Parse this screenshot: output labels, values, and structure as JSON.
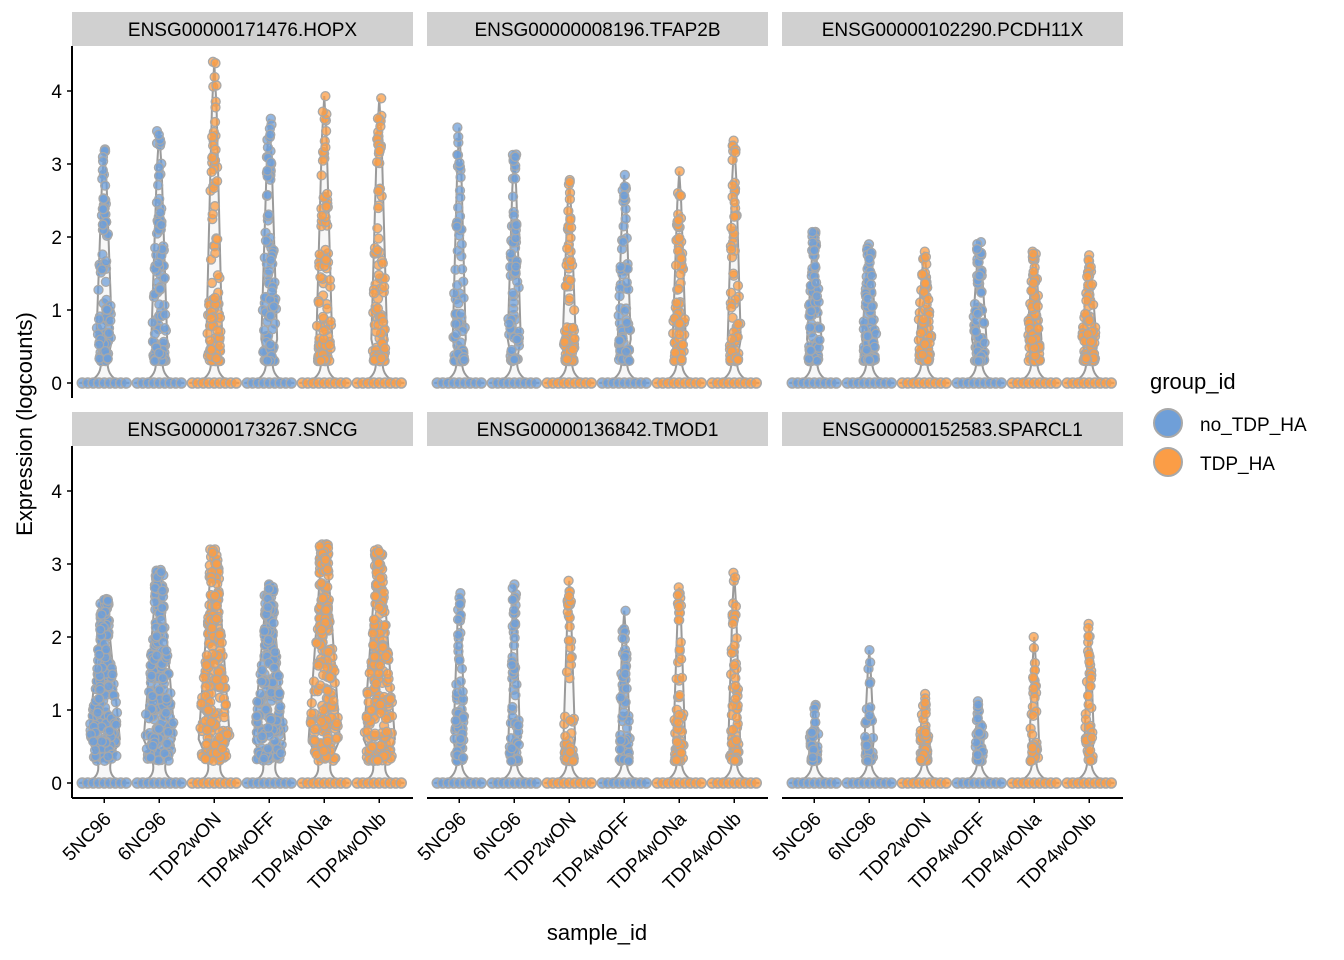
{
  "chart_data": {
    "type": "violin",
    "xlabel": "sample_id",
    "ylabel": "Expression (logcounts)",
    "ylim": [
      0,
      4.5
    ],
    "yticks": [
      0,
      1,
      2,
      3,
      4
    ],
    "grid": false,
    "categories": [
      "5NC96",
      "6NC96",
      "TDP2wON",
      "TDP4wOFF",
      "TDP4wONa",
      "TDP4wONb"
    ],
    "category_group": [
      "no_TDP_HA",
      "no_TDP_HA",
      "TDP_HA",
      "no_TDP_HA",
      "TDP_HA",
      "TDP_HA"
    ],
    "legend": {
      "title": "group_id",
      "position": "right",
      "entries": [
        {
          "name": "no_TDP_HA",
          "color": "#6f9fd8"
        },
        {
          "name": "TDP_HA",
          "color": "#fb9d46"
        }
      ]
    },
    "facets": [
      {
        "title": "ENSG00000171476.HOPX",
        "max_values": [
          3.2,
          3.45,
          4.4,
          3.62,
          3.93,
          3.9
        ]
      },
      {
        "title": "ENSG00000008196.TFAP2B",
        "max_values": [
          3.5,
          3.13,
          2.78,
          2.85,
          2.9,
          3.32
        ]
      },
      {
        "title": "ENSG00000102290.PCDH11X",
        "max_values": [
          2.07,
          1.9,
          1.8,
          1.93,
          1.8,
          1.75
        ]
      },
      {
        "title": "ENSG00000173267.SNCG",
        "max_values": [
          2.52,
          2.92,
          3.2,
          2.72,
          3.27,
          3.2
        ]
      },
      {
        "title": "ENSG00000136842.TMOD1",
        "max_values": [
          2.6,
          2.72,
          2.77,
          2.36,
          2.68,
          2.88
        ]
      },
      {
        "title": "ENSG00000152583.SPARCL1",
        "max_values": [
          1.07,
          1.82,
          1.22,
          1.12,
          2.0,
          2.18
        ]
      }
    ]
  }
}
